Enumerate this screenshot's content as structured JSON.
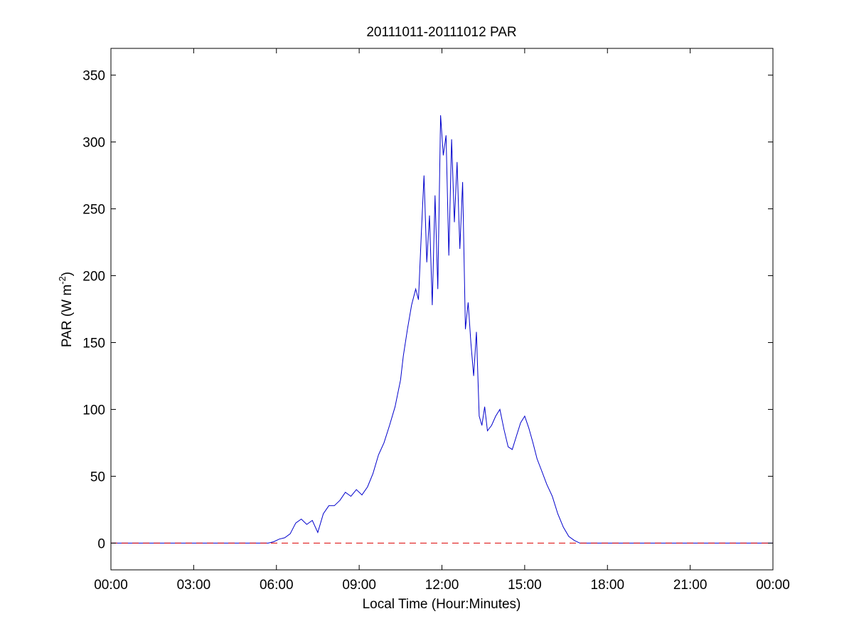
{
  "chart_data": {
    "type": "line",
    "title": "20111011-20111012 PAR",
    "xlabel": "Local Time (Hour:Minutes)",
    "ylabel": {
      "text": "PAR (W m",
      "superscript": "-2",
      "suffix": ")"
    },
    "xlim_hours": [
      0,
      24
    ],
    "ylim": [
      -20,
      370
    ],
    "x_ticks": [
      {
        "value": 0,
        "label": "00:00"
      },
      {
        "value": 3,
        "label": "03:00"
      },
      {
        "value": 6,
        "label": "06:00"
      },
      {
        "value": 9,
        "label": "09:00"
      },
      {
        "value": 12,
        "label": "12:00"
      },
      {
        "value": 15,
        "label": "15:00"
      },
      {
        "value": 18,
        "label": "18:00"
      },
      {
        "value": 21,
        "label": "21:00"
      },
      {
        "value": 24,
        "label": "00:00"
      }
    ],
    "y_ticks": [
      0,
      50,
      100,
      150,
      200,
      250,
      300,
      350
    ],
    "grid": false,
    "legend": "none",
    "series": [
      {
        "color": "#0000cc",
        "style": "solid",
        "x_hours": [
          0,
          5.7,
          5.9,
          6.1,
          6.3,
          6.5,
          6.7,
          6.9,
          7.1,
          7.3,
          7.5,
          7.7,
          7.9,
          8.1,
          8.3,
          8.5,
          8.7,
          8.9,
          9.1,
          9.3,
          9.5,
          9.7,
          9.9,
          10.1,
          10.3,
          10.5,
          10.6,
          10.75,
          10.9,
          11.05,
          11.15,
          11.25,
          11.35,
          11.45,
          11.55,
          11.65,
          11.75,
          11.85,
          11.95,
          12.05,
          12.15,
          12.25,
          12.35,
          12.45,
          12.55,
          12.65,
          12.75,
          12.85,
          12.95,
          13.05,
          13.15,
          13.25,
          13.35,
          13.45,
          13.55,
          13.65,
          13.8,
          13.95,
          14.1,
          14.25,
          14.4,
          14.55,
          14.7,
          14.85,
          15.0,
          15.15,
          15.3,
          15.45,
          15.6,
          15.8,
          16.0,
          16.2,
          16.4,
          16.6,
          16.8,
          17.0,
          17.2,
          17.4,
          17.6,
          17.8,
          18.0,
          24
        ],
        "values": [
          0,
          0,
          1,
          3,
          4,
          7,
          15,
          18,
          14,
          17,
          8,
          22,
          28,
          28,
          32,
          38,
          35,
          40,
          36,
          42,
          52,
          66,
          75,
          88,
          102,
          122,
          140,
          160,
          178,
          190,
          182,
          230,
          275,
          210,
          245,
          178,
          260,
          190,
          320,
          290,
          305,
          215,
          302,
          240,
          285,
          220,
          270,
          160,
          180,
          150,
          125,
          158,
          95,
          88,
          102,
          84,
          88,
          95,
          100,
          85,
          72,
          70,
          80,
          90,
          95,
          86,
          75,
          63,
          55,
          44,
          35,
          22,
          12,
          5,
          2,
          0,
          0,
          0,
          0,
          0,
          0,
          0
        ]
      },
      {
        "color": "#dd0000",
        "style": "dashed",
        "x_hours": [
          0,
          24
        ],
        "values": [
          0,
          0
        ]
      }
    ]
  }
}
